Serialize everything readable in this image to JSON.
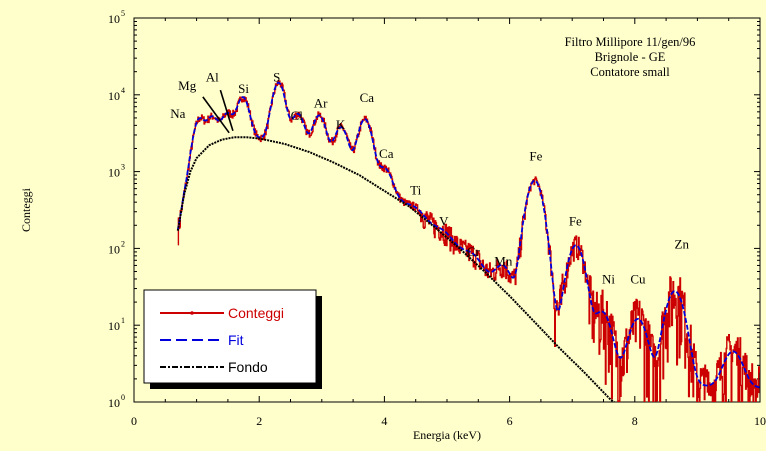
{
  "chart_data": {
    "type": "line",
    "title": "",
    "xlabel": "Energia (keV)",
    "ylabel": "Conteggi",
    "xlim": [
      0,
      10
    ],
    "ylim_log10": [
      0,
      5
    ],
    "y_scale": "log",
    "x_ticks": [
      "0",
      "2",
      "4",
      "6",
      "8",
      "10"
    ],
    "y_ticks": [
      {
        "base": "10",
        "exp": "0"
      },
      {
        "base": "10",
        "exp": "1"
      },
      {
        "base": "10",
        "exp": "2"
      },
      {
        "base": "10",
        "exp": "3"
      },
      {
        "base": "10",
        "exp": "4"
      },
      {
        "base": "10",
        "exp": "5"
      }
    ],
    "annotation_lines": [
      "Filtro Millipore 11/gen/96",
      "Brignole - GE",
      "Contatore small"
    ],
    "element_labels": [
      {
        "text": "Na",
        "x": 0.7,
        "y": 5000
      },
      {
        "text": "Mg",
        "x": 0.85,
        "y": 11500
      },
      {
        "text": "Al",
        "x": 1.25,
        "y": 15000
      },
      {
        "text": "Si",
        "x": 1.75,
        "y": 10500
      },
      {
        "text": "S",
        "x": 2.28,
        "y": 15000
      },
      {
        "text": "Cl",
        "x": 2.6,
        "y": 4700
      },
      {
        "text": "Ar",
        "x": 2.98,
        "y": 6800
      },
      {
        "text": "K",
        "x": 3.3,
        "y": 3600
      },
      {
        "text": "Ca",
        "x": 3.72,
        "y": 8000
      },
      {
        "text": "Ca",
        "x": 4.03,
        "y": 1500
      },
      {
        "text": "Ti",
        "x": 4.5,
        "y": 500
      },
      {
        "text": "V",
        "x": 4.95,
        "y": 200
      },
      {
        "text": "Cr",
        "x": 5.42,
        "y": 80
      },
      {
        "text": "Mn",
        "x": 5.9,
        "y": 60
      },
      {
        "text": "Fe",
        "x": 6.42,
        "y": 1400
      },
      {
        "text": "Fe",
        "x": 7.05,
        "y": 200
      },
      {
        "text": "Ni",
        "x": 7.58,
        "y": 35
      },
      {
        "text": "Cu",
        "x": 8.05,
        "y": 35
      },
      {
        "text": "Zn",
        "x": 8.75,
        "y": 100
      }
    ],
    "leader_lines": [
      {
        "from": [
          1.1,
          9400
        ],
        "to": [
          1.52,
          3200
        ]
      },
      {
        "from": [
          1.38,
          11500
        ],
        "to": [
          1.58,
          3400
        ]
      }
    ],
    "series": [
      {
        "name": "Conteggi",
        "color": "#cc0000",
        "style": "solid"
      },
      {
        "name": "Fit",
        "color": "#0000dd",
        "style": "dashed"
      },
      {
        "name": "Fondo",
        "color": "#000000",
        "style": "dotted"
      }
    ],
    "background_points": [
      [
        0.7,
        170
      ],
      [
        0.8,
        500
      ],
      [
        0.9,
        1000
      ],
      [
        1.0,
        1500
      ],
      [
        1.2,
        2200
      ],
      [
        1.4,
        2600
      ],
      [
        1.6,
        2800
      ],
      [
        1.8,
        2800
      ],
      [
        2.0,
        2700
      ],
      [
        2.4,
        2300
      ],
      [
        2.8,
        1800
      ],
      [
        3.2,
        1300
      ],
      [
        3.6,
        900
      ],
      [
        4.0,
        560
      ],
      [
        4.4,
        350
      ],
      [
        4.8,
        190
      ],
      [
        5.2,
        100
      ],
      [
        5.6,
        50
      ],
      [
        6.0,
        24
      ],
      [
        6.4,
        11
      ],
      [
        6.8,
        5
      ],
      [
        7.2,
        2.4
      ],
      [
        7.6,
        1.1
      ],
      [
        7.7,
        0.95
      ]
    ],
    "peaks": [
      {
        "element": "Na",
        "x": 1.04,
        "height": 3200
      },
      {
        "element": "Mg",
        "x": 1.25,
        "height": 2800
      },
      {
        "element": "Al",
        "x": 1.49,
        "height": 3000
      },
      {
        "element": "Si",
        "x": 1.74,
        "height": 6500
      },
      {
        "element": "S",
        "x": 2.31,
        "height": 12000
      },
      {
        "element": "Cl",
        "x": 2.62,
        "height": 3600
      },
      {
        "element": "Ar",
        "x": 2.96,
        "height": 3800
      },
      {
        "element": "K",
        "x": 3.31,
        "height": 2600
      },
      {
        "element": "Ca",
        "x": 3.69,
        "height": 4000
      },
      {
        "element": "Ca",
        "x": 4.01,
        "height": 540
      },
      {
        "element": "Ti",
        "x": 4.51,
        "height": 40
      },
      {
        "element": "V",
        "x": 4.95,
        "height": 20
      },
      {
        "element": "Cr",
        "x": 5.41,
        "height": 15
      },
      {
        "element": "Mn",
        "x": 5.9,
        "height": 30
      },
      {
        "element": "Fe",
        "x": 6.4,
        "height": 750
      },
      {
        "element": "Fe",
        "x": 7.06,
        "height": 105
      },
      {
        "element": "Ni",
        "x": 7.48,
        "height": 12
      },
      {
        "element": "Cu",
        "x": 8.05,
        "height": 10
      },
      {
        "element": "Zn",
        "x": 8.64,
        "height": 26
      },
      {
        "element": "",
        "x": 9.57,
        "height": 3
      }
    ],
    "peak_sigma_keV": 0.075,
    "flat_background": 1.5,
    "grid": false,
    "legend_position": "bottom-left"
  },
  "colors": {
    "background": "#ffffcc",
    "conteggi": "#cc0000",
    "fit": "#0000dd",
    "fondo": "#000000"
  }
}
